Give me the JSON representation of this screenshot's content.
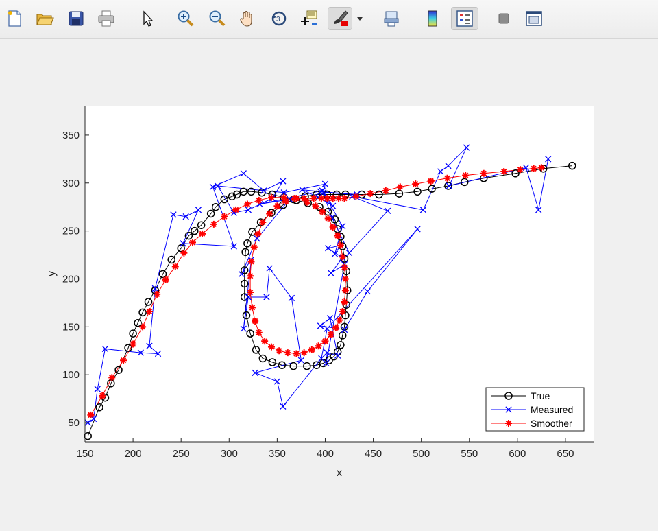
{
  "toolbar": {
    "buttons": [
      {
        "name": "new-figure-icon",
        "icon": "new-file-icon"
      },
      {
        "name": "open-file-icon",
        "icon": "folder-icon"
      },
      {
        "name": "save-figure-icon",
        "icon": "floppy-disk-icon"
      },
      {
        "name": "print-figure-icon",
        "icon": "printer-icon"
      },
      {
        "name": "edit-plot-icon",
        "icon": "arrow-pointer-icon"
      },
      {
        "name": "zoom-in-icon",
        "icon": "magnifier-plus-icon"
      },
      {
        "name": "zoom-out-icon",
        "icon": "magnifier-minus-icon"
      },
      {
        "name": "pan-icon",
        "icon": "hand-icon"
      },
      {
        "name": "rotate-3d-icon",
        "icon": "rotate-icon"
      },
      {
        "name": "data-cursor-icon",
        "icon": "data-tip-icon"
      },
      {
        "name": "brush-icon",
        "icon": "brush-icon"
      },
      {
        "name": "link-plot-icon",
        "icon": "link-icon"
      },
      {
        "name": "insert-colorbar-icon",
        "icon": "colorbar-icon"
      },
      {
        "name": "insert-legend-icon",
        "icon": "legend-icon"
      },
      {
        "name": "hide-plot-tools-icon",
        "icon": "square-icon"
      },
      {
        "name": "show-plot-tools-icon",
        "icon": "window-icon"
      }
    ]
  },
  "chart_data": {
    "type": "line",
    "xlabel": "x",
    "ylabel": "y",
    "xlim": [
      150,
      680
    ],
    "ylim": [
      30,
      380
    ],
    "xticks": [
      150,
      200,
      250,
      300,
      350,
      400,
      450,
      500,
      550,
      600,
      650
    ],
    "yticks": [
      50,
      100,
      150,
      200,
      250,
      300,
      350
    ],
    "grid": false,
    "legend_position": "bottom-right",
    "series": [
      {
        "name": "True",
        "color": "#000000",
        "marker": "circle",
        "x": [
          153,
          165,
          171,
          177,
          185,
          195,
          200,
          205,
          210,
          216,
          223,
          231,
          240,
          250,
          258,
          264,
          271,
          281,
          286,
          295,
          303,
          308,
          315,
          323,
          334,
          345,
          357,
          370,
          382,
          394,
          403,
          410,
          413,
          416,
          418,
          420,
          422,
          423,
          422,
          421,
          420,
          418,
          416,
          413,
          409,
          404,
          398,
          391,
          381,
          367,
          355,
          345,
          335,
          328,
          322,
          318,
          316,
          316,
          316,
          317,
          319,
          324,
          333,
          344,
          356,
          367,
          379,
          391,
          402,
          412,
          421,
          438,
          456,
          477,
          496,
          511,
          528,
          545,
          565,
          598,
          627,
          657
        ],
        "y": [
          36,
          66,
          76,
          91,
          105,
          128,
          143,
          154,
          165,
          176,
          188,
          205,
          220,
          232,
          245,
          250,
          256,
          268,
          275,
          283,
          286,
          288,
          291,
          291,
          290,
          288,
          285,
          282,
          279,
          275,
          270,
          262,
          252,
          244,
          234,
          221,
          208,
          188,
          173,
          162,
          150,
          141,
          131,
          124,
          119,
          115,
          112,
          110,
          109,
          109,
          110,
          113,
          117,
          126,
          143,
          162,
          181,
          195,
          209,
          228,
          237,
          249,
          259,
          269,
          277,
          283,
          286,
          288,
          288,
          288,
          288,
          288,
          288,
          289,
          291,
          294,
          297,
          301,
          305,
          310,
          315,
          318
        ]
      },
      {
        "name": "Measured",
        "color": "#0000ff",
        "marker": "x",
        "x": [
          153,
          159,
          163,
          171,
          208,
          226,
          217,
          223,
          242,
          255,
          268,
          252,
          305,
          283,
          315,
          336,
          356,
          345,
          320,
          305,
          288,
          357,
          400,
          398,
          433,
          395,
          376,
          393,
          408,
          398,
          418,
          410,
          416,
          403,
          418,
          406,
          420,
          401,
          402,
          413,
          405,
          395,
          420,
          444,
          496,
          402,
          396,
          356,
          350,
          327,
          375,
          365,
          342,
          339,
          320,
          315,
          323,
          313,
          329,
          363,
          332,
          397,
          407,
          425,
          465,
          428,
          502,
          520,
          528,
          547,
          529,
          609,
          622,
          632
        ],
        "y": [
          50,
          54,
          85,
          127,
          123,
          122,
          130,
          190,
          267,
          265,
          272,
          237,
          234,
          296,
          310,
          292,
          302,
          284,
          272,
          269,
          297,
          290,
          299,
          290,
          288,
          291,
          293,
          285,
          276,
          290,
          255,
          226,
          235,
          232,
          222,
          206,
          215,
          112,
          123,
          120,
          159,
          151,
          147,
          187,
          252,
          148,
          117,
          67,
          93,
          102,
          115,
          180,
          211,
          181,
          181,
          148,
          220,
          205,
          242,
          283,
          278,
          292,
          264,
          227,
          271,
          286,
          272,
          312,
          318,
          337,
          297,
          316,
          272,
          325
        ]
      },
      {
        "name": "Smoother",
        "color": "#ff0000",
        "marker": "asterisk",
        "x": [
          156,
          168,
          178,
          190,
          200,
          210,
          217,
          225,
          234,
          244,
          253,
          262,
          272,
          284,
          295,
          307,
          319,
          331,
          344,
          357,
          370,
          381,
          390,
          397,
          403,
          408,
          413,
          416,
          418,
          420,
          421,
          421,
          420,
          418,
          415,
          411,
          406,
          400,
          393,
          386,
          378,
          370,
          361,
          352,
          344,
          337,
          331,
          327,
          324,
          322,
          322,
          323,
          326,
          330,
          335,
          342,
          350,
          359,
          368,
          378,
          388,
          396,
          402,
          408,
          414,
          420,
          432,
          447,
          463,
          478,
          494,
          510,
          527,
          546,
          565,
          586,
          603,
          617,
          625
        ],
        "y": [
          58,
          78,
          97,
          115,
          132,
          150,
          166,
          184,
          199,
          213,
          227,
          238,
          247,
          257,
          265,
          272,
          278,
          282,
          285,
          285,
          284,
          280,
          276,
          270,
          263,
          254,
          245,
          235,
          223,
          212,
          200,
          188,
          176,
          166,
          157,
          149,
          142,
          135,
          130,
          126,
          123,
          122,
          123,
          125,
          129,
          135,
          144,
          156,
          170,
          186,
          203,
          218,
          233,
          247,
          259,
          268,
          276,
          281,
          284,
          284,
          284,
          284,
          284,
          284,
          284,
          284,
          286,
          289,
          292,
          296,
          299,
          302,
          305,
          308,
          310,
          312,
          314,
          315,
          316
        ]
      }
    ]
  }
}
